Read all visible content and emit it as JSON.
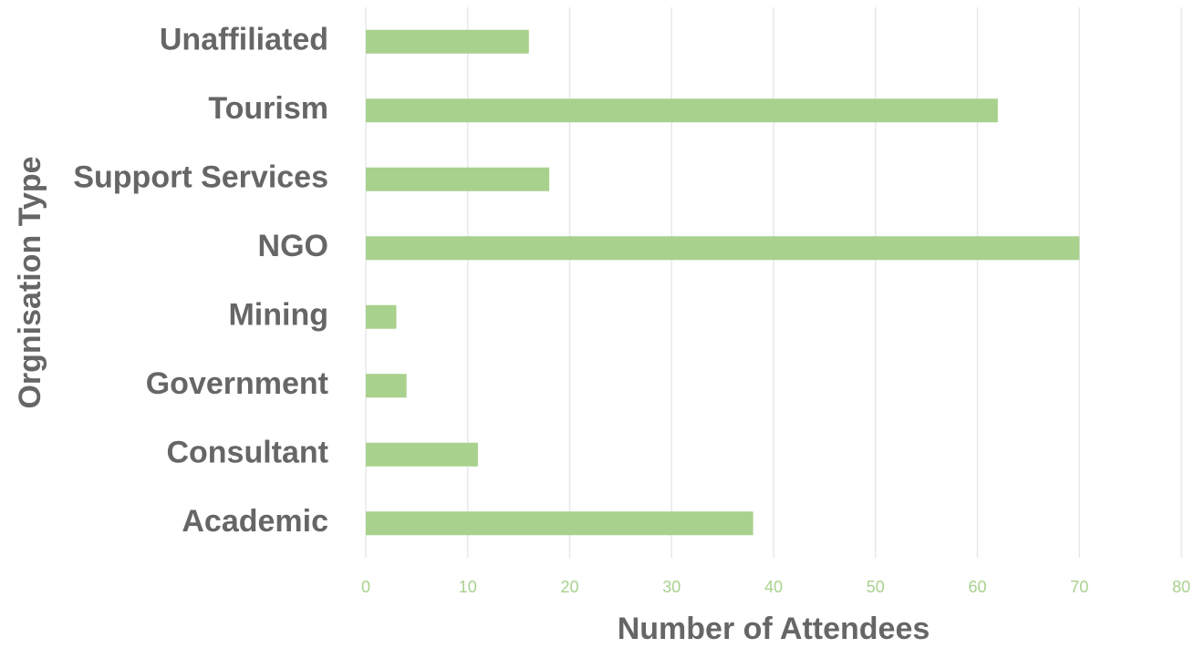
{
  "chart_data": {
    "type": "bar",
    "orientation": "horizontal",
    "x_label": "Number of Attendees",
    "y_label": "Orgnisation Type",
    "categories": [
      "Unaffiliated",
      "Tourism",
      "Support Services",
      "NGO",
      "Mining",
      "Government",
      "Consultant",
      "Academic"
    ],
    "values": [
      16,
      62,
      18,
      70,
      3,
      4,
      11,
      38
    ],
    "color": "#a9d18e",
    "xlim": [
      0,
      80
    ],
    "xticks": [
      0,
      10,
      20,
      30,
      40,
      50,
      60,
      70,
      80
    ],
    "grid": true
  }
}
